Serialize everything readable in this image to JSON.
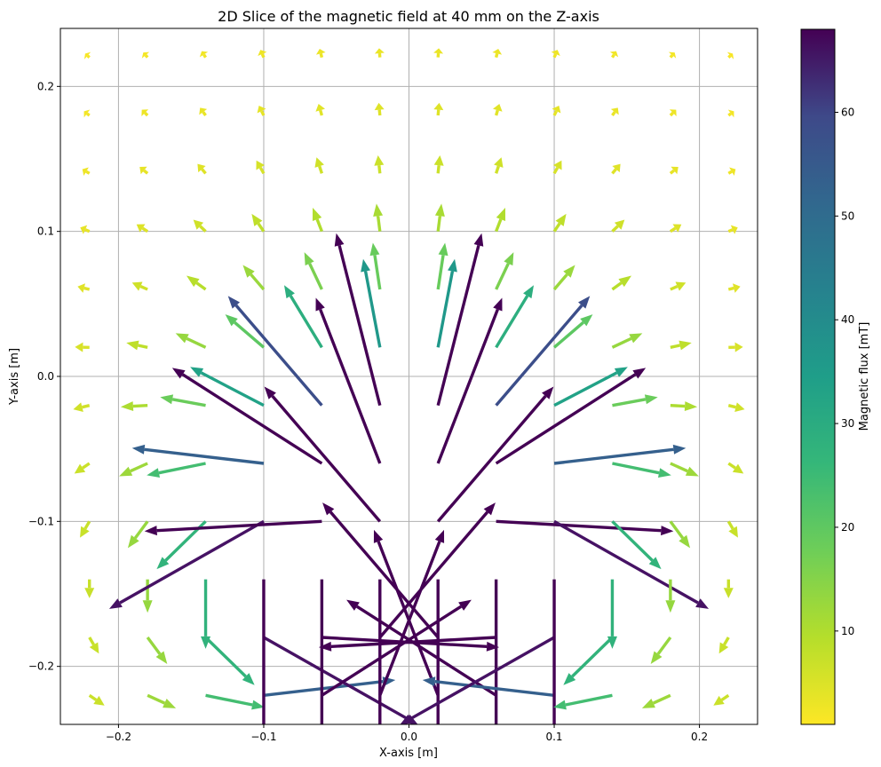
{
  "chart_data": {
    "type": "quiver",
    "title": "2D Slice of the magnetic field at 40 mm on the Z-axis",
    "xlabel": "X-axis [m]",
    "ylabel": "Y-axis [m]",
    "xlim": [
      -0.24,
      0.24
    ],
    "ylim": [
      -0.24,
      0.24
    ],
    "xticks": [
      -0.2,
      -0.1,
      0.0,
      0.1,
      0.2
    ],
    "xtick_labels": [
      "−0.2",
      "−0.1",
      "0.0",
      "0.1",
      "0.2"
    ],
    "yticks": [
      -0.2,
      -0.1,
      0.0,
      0.1,
      0.2
    ],
    "ytick_labels": [
      "−0.2",
      "−0.1",
      "0.0",
      "0.1",
      "0.2"
    ],
    "grid": true,
    "grid_x": [
      -0.22,
      -0.18,
      -0.14,
      -0.1,
      -0.06,
      -0.02,
      0.02,
      0.06,
      0.1,
      0.14,
      0.18,
      0.22
    ],
    "grid_y": [
      -0.22,
      -0.18,
      -0.14,
      -0.1,
      -0.06,
      -0.02,
      0.02,
      0.06,
      0.1,
      0.14,
      0.18,
      0.22
    ],
    "field_model": "dipole",
    "source_y": -0.14,
    "colormap": "viridis_r",
    "colorbar": {
      "label": "Magnetic flux [mT]",
      "min": 1,
      "max": 68,
      "ticks": [
        10,
        20,
        30,
        40,
        50,
        60
      ],
      "tick_labels": [
        "10",
        "20",
        "30",
        "40",
        "50",
        "60"
      ]
    }
  }
}
